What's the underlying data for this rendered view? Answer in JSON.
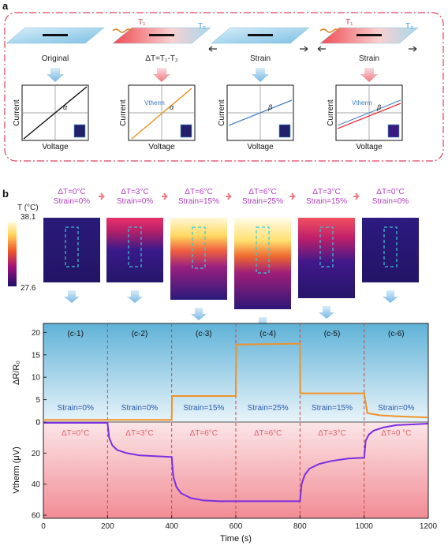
{
  "panel_a": {
    "label": "a",
    "cases": [
      {
        "caption": "Original",
        "angle": "α",
        "show_t": false,
        "show_arrows": false,
        "show_vtherm": false,
        "xlabel": "Voltage",
        "ylabel": "Current"
      },
      {
        "caption": "ΔT=T₁-T₂",
        "angle": "α",
        "show_t": true,
        "show_arrows": false,
        "show_vtherm": true,
        "xlabel": "Voltage",
        "ylabel": "Current"
      },
      {
        "caption": "Strain",
        "angle": "β",
        "show_t": false,
        "show_arrows": true,
        "show_vtherm": false,
        "xlabel": "Voltage",
        "ylabel": "Current"
      },
      {
        "caption": "Strain",
        "angle": "β",
        "show_t": true,
        "show_arrows": true,
        "show_vtherm": true,
        "xlabel": "Voltage",
        "ylabel": "Current"
      }
    ],
    "t1": "T₁",
    "t2": "T₂",
    "vtherm": "Vtherm"
  },
  "panel_b": {
    "label": "b",
    "colorbar": {
      "title": "T (°C)",
      "max": "38.1",
      "min": "27.6"
    },
    "conditions": [
      {
        "dt": "ΔT=0°C",
        "strain": "Strain=0%"
      },
      {
        "dt": "ΔT=3°C",
        "strain": "Strain=0%"
      },
      {
        "dt": "ΔT=6°C",
        "strain": "Strain=15%"
      },
      {
        "dt": "ΔT=6°C",
        "strain": "Strain=25%"
      },
      {
        "dt": "ΔT=3°C",
        "strain": "Strain=15%"
      },
      {
        "dt": "ΔT=0°C",
        "strain": "Strain=0%"
      }
    ]
  },
  "chart_data": {
    "type": "line",
    "segment_labels": [
      "(c-1)",
      "(c-2)",
      "(c-3)",
      "(c-4)",
      "(c-5)",
      "(c-6)"
    ],
    "strain_labels": [
      "Strain=0%",
      "Strain=0%",
      "Strain=15%",
      "Strain=25%",
      "Strain=15%",
      "Strain=0%"
    ],
    "dt_labels": [
      "ΔT=0°C",
      "ΔT=3°C",
      "ΔT=6°C",
      "ΔT=6°C",
      "ΔT=3°C",
      "ΔT=0 °C"
    ],
    "xlabel": "Time (s)",
    "xlim": [
      0,
      1200
    ],
    "xticks": [
      0,
      200,
      400,
      600,
      800,
      1000,
      1200
    ],
    "dividers": [
      200,
      400,
      600,
      800,
      1000
    ],
    "top": {
      "ylabel": "ΔR/R₀",
      "ylim": [
        0,
        22
      ],
      "yticks": [
        0,
        5,
        10,
        15,
        20
      ],
      "color": "#f0922a",
      "series": {
        "name": "ΔR/R₀",
        "x": [
          0,
          200,
          400,
          401,
          600,
          601,
          800,
          801,
          1000,
          1010,
          1050,
          1100,
          1200
        ],
        "y": [
          0.5,
          0.5,
          0.5,
          5.8,
          5.8,
          17.3,
          17.5,
          6.4,
          6.4,
          2.0,
          1.5,
          1.3,
          1.0
        ]
      }
    },
    "bottom": {
      "ylabel": "Vtherm (μV)",
      "ylim": [
        0,
        62
      ],
      "yticks": [
        0,
        20,
        40,
        60
      ],
      "inverted": true,
      "color": "#7a2fe0",
      "series": {
        "name": "Vtherm",
        "x": [
          0,
          200,
          205,
          215,
          230,
          260,
          300,
          350,
          400,
          405,
          415,
          430,
          460,
          500,
          550,
          600,
          800,
          805,
          815,
          830,
          860,
          900,
          950,
          1000,
          1005,
          1015,
          1030,
          1060,
          1100,
          1150,
          1200
        ],
        "y": [
          0.5,
          0.5,
          10,
          15,
          18,
          20,
          21.5,
          22,
          22.5,
          35,
          42,
          46,
          49,
          50.5,
          51,
          51,
          51,
          40,
          34,
          30,
          27,
          25,
          23.5,
          23,
          12,
          8,
          5.5,
          3.5,
          2,
          1.5,
          1
        ]
      }
    }
  },
  "colors": {
    "dashed_frame": "#e0405a",
    "divider": "#c84a3a",
    "top_bg": "#6ab8da",
    "bottom_bg": "#f39aa0"
  }
}
